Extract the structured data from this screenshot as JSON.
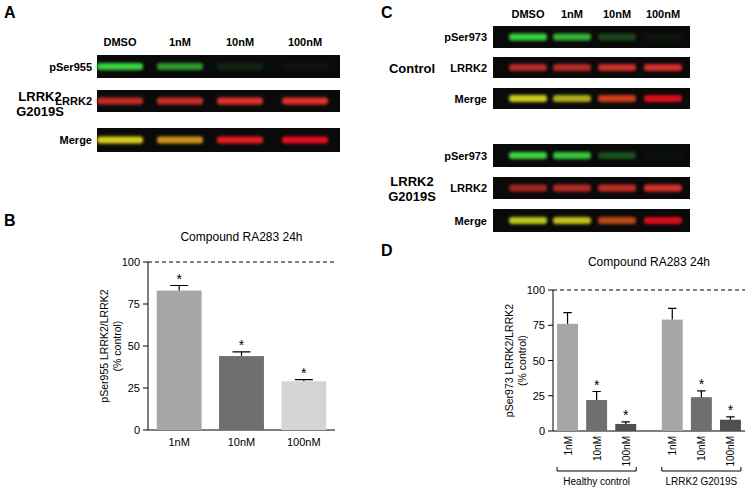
{
  "blots": [
    {
      "panel": "A",
      "columns": [
        "DMSO",
        "1nM",
        "10nM",
        "100nM"
      ],
      "groups": [
        {
          "label": [
            "LRRK2",
            "G2019S"
          ],
          "rows": [
            "pSer955",
            "LRRK2",
            "Merge"
          ]
        }
      ]
    },
    {
      "panel": "C",
      "columns": [
        "DMSO",
        "1nM",
        "10nM",
        "100nM"
      ],
      "groups": [
        {
          "label": [
            "Control"
          ],
          "rows": [
            "pSer973",
            "LRRK2",
            "Merge"
          ]
        },
        {
          "label": [
            "LRRK2",
            "G2019S"
          ],
          "rows": [
            "pSer973",
            "LRRK2",
            "Merge"
          ]
        }
      ]
    }
  ],
  "chart_data": [
    {
      "panel": "B",
      "type": "bar",
      "title": "Compound RA283 24h",
      "y_label": [
        "pSer955 LRRK2/LRRK2",
        "(% control)"
      ],
      "categories": [
        "1nM",
        "10nM",
        "100nM"
      ],
      "values": [
        83,
        44,
        29
      ],
      "errors": [
        3,
        2.5,
        1
      ],
      "significance": [
        "*",
        "*",
        "*"
      ],
      "colors": [
        "#a6a6a6",
        "#6f6f6f",
        "#d4d4d4"
      ],
      "ylim": [
        0,
        100
      ],
      "yticks": [
        0,
        25,
        50,
        75,
        100
      ],
      "reference_line": 100
    },
    {
      "panel": "D",
      "type": "bar",
      "title": "Compound RA283 24h",
      "y_label": [
        "pSer973 LRRK2/LRRK2",
        "(% control)"
      ],
      "categories": [
        "1nM",
        "10nM",
        "100nM"
      ],
      "series": [
        {
          "name": "Healthy control",
          "values": [
            76,
            22,
            5
          ],
          "errors": [
            8,
            6,
            1.5
          ],
          "significance": [
            null,
            "*",
            "*"
          ]
        },
        {
          "name": "LRRK2 G2019S",
          "values": [
            79,
            24,
            8
          ],
          "errors": [
            8,
            4.5,
            2
          ],
          "significance": [
            null,
            "*",
            "*"
          ]
        }
      ],
      "colors": [
        "#a6a6a6",
        "#6f6f6f",
        "#4f4f4f"
      ],
      "ylim": [
        0,
        100
      ],
      "yticks": [
        0,
        25,
        50,
        75,
        100
      ],
      "reference_line": 100
    }
  ]
}
